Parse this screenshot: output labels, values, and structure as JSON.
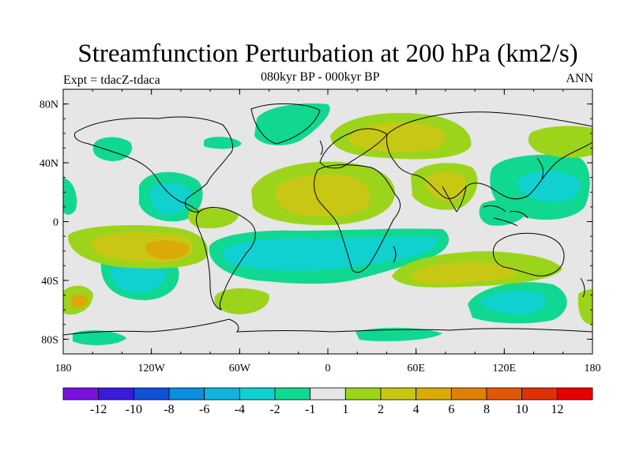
{
  "title": "Streamfunction Perturbation at 200 hPa (km2/s)",
  "subtitle_center": "080kyr BP - 000kyr BP",
  "subtitle_left": "Expt = tdacZ-tdaca",
  "subtitle_right": "ANN",
  "lat_labels": [
    {
      "text": "80N",
      "lat": 80
    },
    {
      "text": "40N",
      "lat": 40
    },
    {
      "text": "0",
      "lat": 0
    },
    {
      "text": "40S",
      "lat": -40
    },
    {
      "text": "80S",
      "lat": -80
    }
  ],
  "lon_labels": [
    {
      "text": "180",
      "lon": -180
    },
    {
      "text": "120W",
      "lon": -120
    },
    {
      "text": "60W",
      "lon": -60
    },
    {
      "text": "0",
      "lon": 0
    },
    {
      "text": "60E",
      "lon": 60
    },
    {
      "text": "120E",
      "lon": 120
    },
    {
      "text": "180",
      "lon": 180
    }
  ],
  "colorbar": {
    "colors": [
      "#7a10e0",
      "#3a1adc",
      "#1050d8",
      "#0a8ee0",
      "#10b4dc",
      "#10d0d0",
      "#10d890",
      "#e6e6e6",
      "#9cd41c",
      "#c8c814",
      "#dcaa08",
      "#e08008",
      "#e05808",
      "#e03008",
      "#e80000"
    ],
    "labels": [
      "-12",
      "-10",
      "-8",
      "-6",
      "-4",
      "-2",
      "-1",
      "1",
      "2",
      "4",
      "6",
      "8",
      "10",
      "12"
    ]
  },
  "colors": {
    "background": "#e6e6e6",
    "neg_light": "#10d890",
    "neg_mid": "#10d0d0",
    "pos_light": "#9cd41c",
    "pos_mid": "#c8c814",
    "pos_strong": "#dcaa08"
  }
}
